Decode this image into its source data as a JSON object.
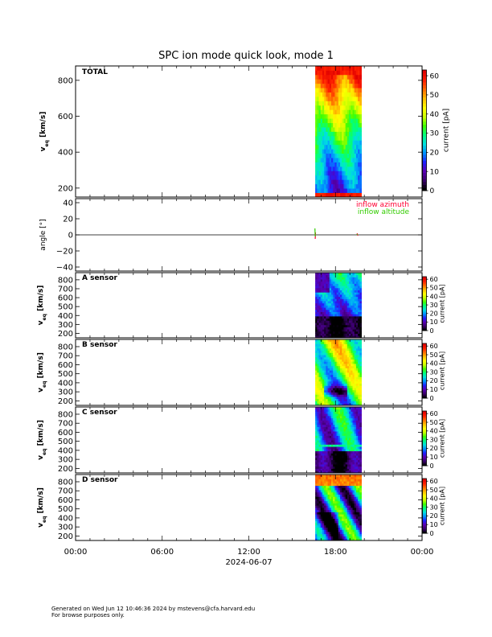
{
  "title": "SPC ion mode quick look, mode 1",
  "footer": {
    "line1": "Generated on Wed Jun 12 10:46:36 2024 by mstevens@cfa.harvard.edu",
    "line2": "For browse purposes only."
  },
  "colors": {
    "azimuth": "#ff0033",
    "altitude": "#33cc00",
    "colormap": [
      "#000000",
      "#3a006a",
      "#5a00b4",
      "#2020ff",
      "#0090ff",
      "#00e0e0",
      "#00ff80",
      "#40ff00",
      "#c8ff00",
      "#ffff00",
      "#ffc000",
      "#ff7000",
      "#ff2000",
      "#e00000"
    ]
  },
  "chart_data": {
    "type": "heatmap",
    "x_axis": {
      "ticks": [
        "00:00",
        "06:00",
        "12:00",
        "18:00",
        "00:00"
      ],
      "tick_hours": [
        0,
        6,
        12,
        18,
        24
      ],
      "range_hours": [
        0,
        24
      ],
      "date_label": "2024-06-07"
    },
    "data_interval_hours": [
      16.6,
      19.8
    ],
    "panels": [
      {
        "id": "total",
        "label": "TOTAL",
        "ylabel_main": "v",
        "ylabel_sub": "eq",
        "ylabel_unit": " [km/s]",
        "ylim": [
          150,
          880
        ],
        "yticks": [
          "200",
          "400",
          "600",
          "800"
        ],
        "ytick_values": [
          200,
          400,
          600,
          800
        ],
        "colorbar": {
          "label": "current [pA]",
          "range": [
            0,
            63
          ],
          "ticks": [
            "0",
            "10",
            "20",
            "30",
            "40",
            "50",
            "60"
          ],
          "tick_values": [
            0,
            10,
            20,
            30,
            40,
            50,
            60
          ]
        }
      },
      {
        "id": "angle",
        "ylabel": "angle [°]",
        "ylim": [
          -45,
          45
        ],
        "yticks": [
          "−40",
          "−20",
          "0",
          "20",
          "40"
        ],
        "ytick_values": [
          -40,
          -20,
          0,
          20,
          40
        ],
        "series": [
          {
            "name": "inflow azimuth",
            "points": [
              [
                16.6,
                -5
              ],
              [
                16.62,
                3
              ],
              [
                19.5,
                2
              ],
              [
                19.55,
                -1
              ]
            ]
          },
          {
            "name": "inflow altitude",
            "points": [
              [
                16.58,
                8
              ],
              [
                16.6,
                -2
              ],
              [
                19.48,
                1
              ],
              [
                19.53,
                0
              ]
            ]
          }
        ]
      },
      {
        "id": "a",
        "label": "A sensor",
        "ylabel_main": "v",
        "ylabel_sub": "eq",
        "ylabel_unit": " [km/s]",
        "ylim": [
          150,
          880
        ],
        "yticks": [
          "200",
          "300",
          "400",
          "500",
          "600",
          "700",
          "800"
        ],
        "ytick_values": [
          200,
          300,
          400,
          500,
          600,
          700,
          800
        ],
        "colorbar": {
          "label": "current [pA]",
          "range": [
            0,
            63
          ],
          "ticks": [
            "0",
            "10",
            "20",
            "30",
            "40",
            "50",
            "60"
          ],
          "tick_values": [
            0,
            10,
            20,
            30,
            40,
            50,
            60
          ]
        }
      },
      {
        "id": "b",
        "label": "B sensor",
        "ylabel_main": "v",
        "ylabel_sub": "eq",
        "ylabel_unit": " [km/s]",
        "ylim": [
          150,
          880
        ],
        "yticks": [
          "200",
          "300",
          "400",
          "500",
          "600",
          "700",
          "800"
        ],
        "ytick_values": [
          200,
          300,
          400,
          500,
          600,
          700,
          800
        ],
        "colorbar": {
          "label": "current [pA]",
          "range": [
            0,
            63
          ],
          "ticks": [
            "0",
            "10",
            "20",
            "30",
            "40",
            "50",
            "60"
          ],
          "tick_values": [
            0,
            10,
            20,
            30,
            40,
            50,
            60
          ]
        }
      },
      {
        "id": "c",
        "label": "C sensor",
        "ylabel_main": "v",
        "ylabel_sub": "eq",
        "ylabel_unit": " [km/s]",
        "ylim": [
          150,
          880
        ],
        "yticks": [
          "200",
          "300",
          "400",
          "500",
          "600",
          "700",
          "800"
        ],
        "ytick_values": [
          200,
          300,
          400,
          500,
          600,
          700,
          800
        ],
        "colorbar": {
          "label": "current [pA]",
          "range": [
            0,
            63
          ],
          "ticks": [
            "0",
            "10",
            "20",
            "30",
            "40",
            "50",
            "60"
          ],
          "tick_values": [
            0,
            10,
            20,
            30,
            40,
            50,
            60
          ]
        }
      },
      {
        "id": "d",
        "label": "D sensor",
        "ylabel_main": "v",
        "ylabel_sub": "eq",
        "ylabel_unit": " [km/s]",
        "ylim": [
          150,
          880
        ],
        "yticks": [
          "200",
          "300",
          "400",
          "500",
          "600",
          "700",
          "800"
        ],
        "ytick_values": [
          200,
          300,
          400,
          500,
          600,
          700,
          800
        ],
        "colorbar": {
          "label": "current [pA]",
          "range": [
            0,
            63
          ],
          "ticks": [
            "0",
            "10",
            "20",
            "30",
            "40",
            "50",
            "60"
          ],
          "tick_values": [
            0,
            10,
            20,
            30,
            40,
            50,
            60
          ]
        }
      }
    ]
  }
}
